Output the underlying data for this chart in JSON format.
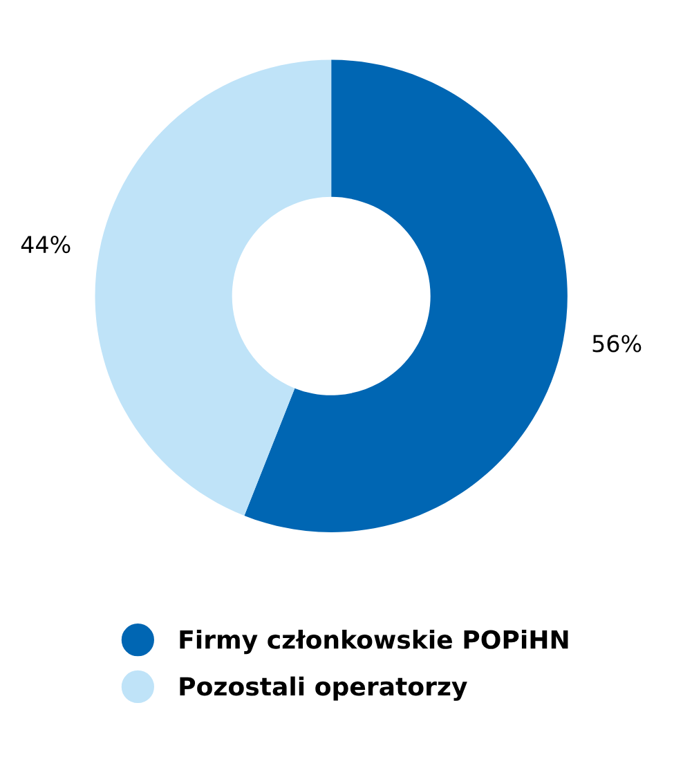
{
  "chart_data": {
    "type": "donut",
    "categories": [
      "Firmy członkowskie POPiHN",
      "Pozostali operatorzy"
    ],
    "values": [
      56,
      44
    ],
    "colors": [
      "#0066b3",
      "#bfe3f8"
    ],
    "value_labels": [
      "56%",
      "44%"
    ],
    "legend": "bottom"
  }
}
